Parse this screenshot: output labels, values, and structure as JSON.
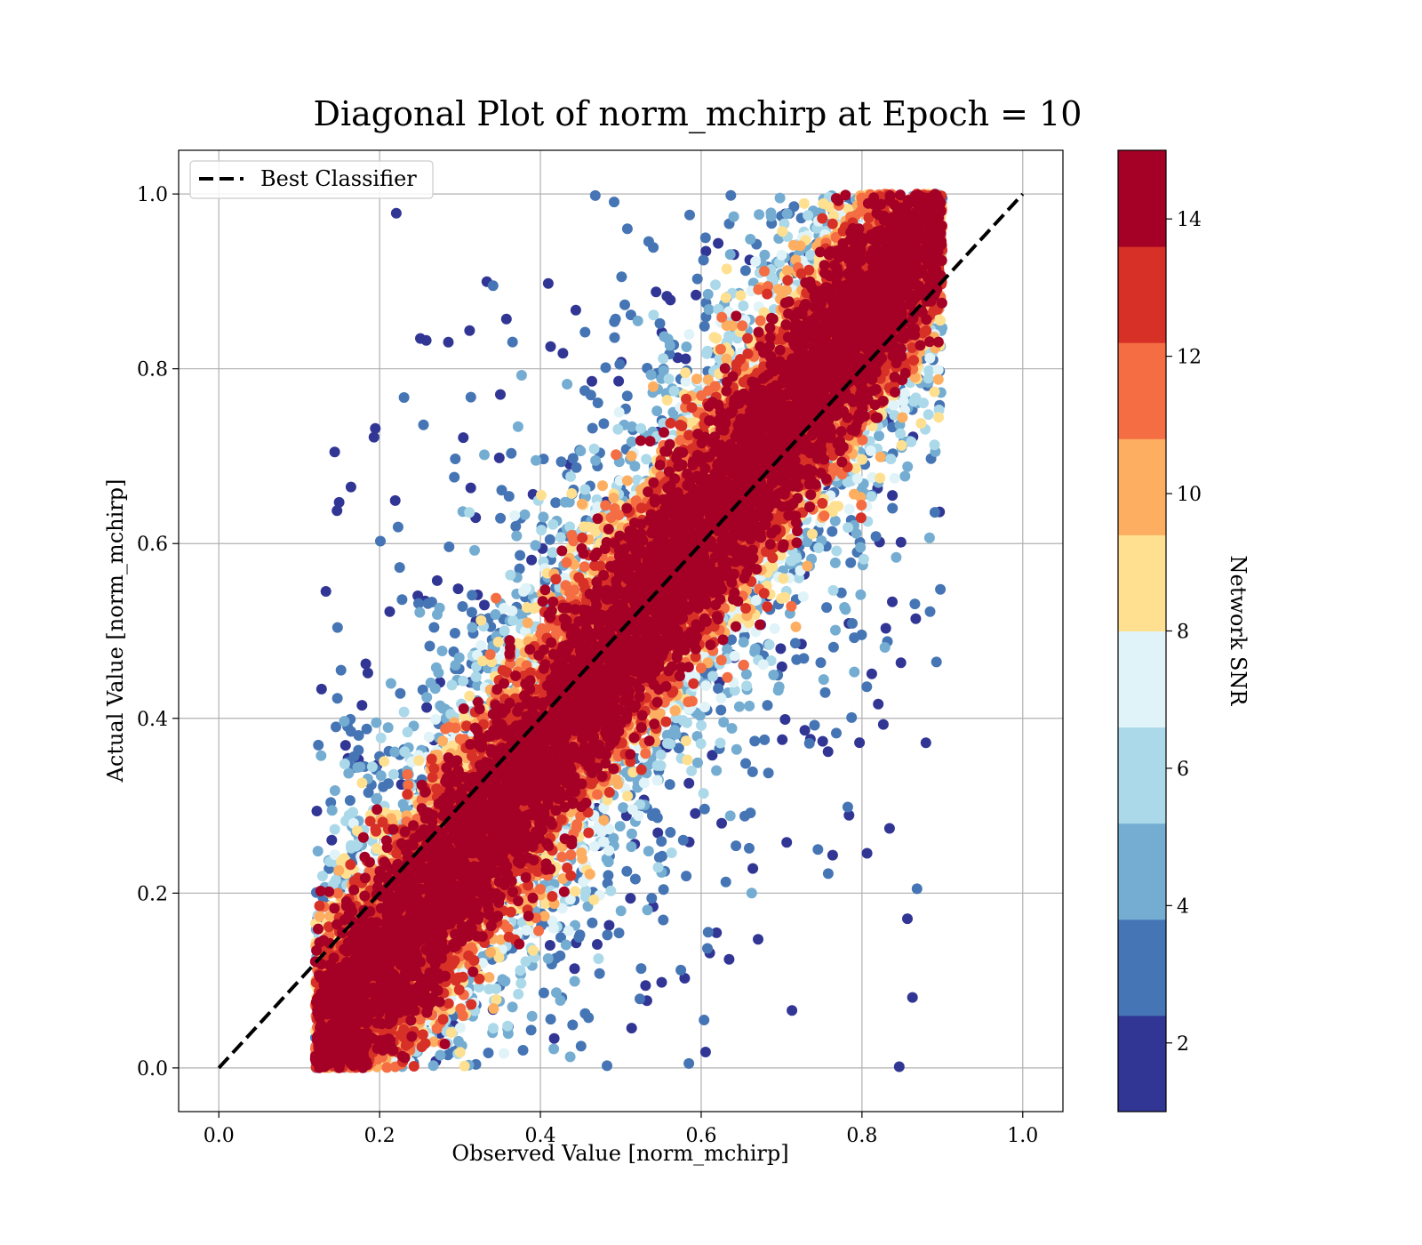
{
  "chart_data": {
    "type": "scatter",
    "title": "Diagonal Plot of norm_mchirp at Epoch = 10",
    "xlabel": "Observed Value [norm_mchirp]",
    "ylabel": "Actual Value [norm_mchirp]",
    "xlim": [
      -0.05,
      1.05
    ],
    "ylim": [
      -0.05,
      1.05
    ],
    "x_ticks": [
      "0.0",
      "0.2",
      "0.4",
      "0.6",
      "0.8",
      "1.0"
    ],
    "y_ticks": [
      "0.0",
      "0.2",
      "0.4",
      "0.6",
      "0.8",
      "1.0"
    ],
    "x_tick_values": [
      0.0,
      0.2,
      0.4,
      0.6,
      0.8,
      1.0
    ],
    "y_tick_values": [
      0.0,
      0.2,
      0.4,
      0.6,
      0.8,
      1.0
    ],
    "grid": true,
    "legend_position": "top-left",
    "legend": [
      {
        "label": "Best Classifier",
        "style": "dashed",
        "color": "#000000"
      }
    ],
    "reference_line": {
      "name": "Best Classifier",
      "x": [
        0.0,
        1.0
      ],
      "y": [
        0.0,
        1.0
      ],
      "style": "dashed",
      "color": "#000000"
    },
    "scatter_description": {
      "approx_x_range": [
        0.12,
        0.9
      ],
      "approx_y_range": [
        0.0,
        1.0
      ],
      "trend": "dense band along the diagonal; high SNR points near the diagonal, low SNR points spread farther away",
      "approx_point_count": 30000
    },
    "colorbar": {
      "label": "Network SNR",
      "range": [
        1,
        15
      ],
      "ticks": [
        "2",
        "4",
        "6",
        "8",
        "10",
        "12",
        "14"
      ],
      "tick_values": [
        2,
        4,
        6,
        8,
        10,
        12,
        14
      ],
      "colors": [
        "#313695",
        "#4575b4",
        "#74add1",
        "#abd9e9",
        "#e0f3f8",
        "#fee090",
        "#fdae61",
        "#f46d43",
        "#d73027",
        "#a50026"
      ],
      "boundaries": [
        1,
        2.4,
        3.8,
        5.2,
        6.6,
        8.0,
        9.4,
        10.8,
        12.2,
        13.6,
        15
      ]
    }
  }
}
